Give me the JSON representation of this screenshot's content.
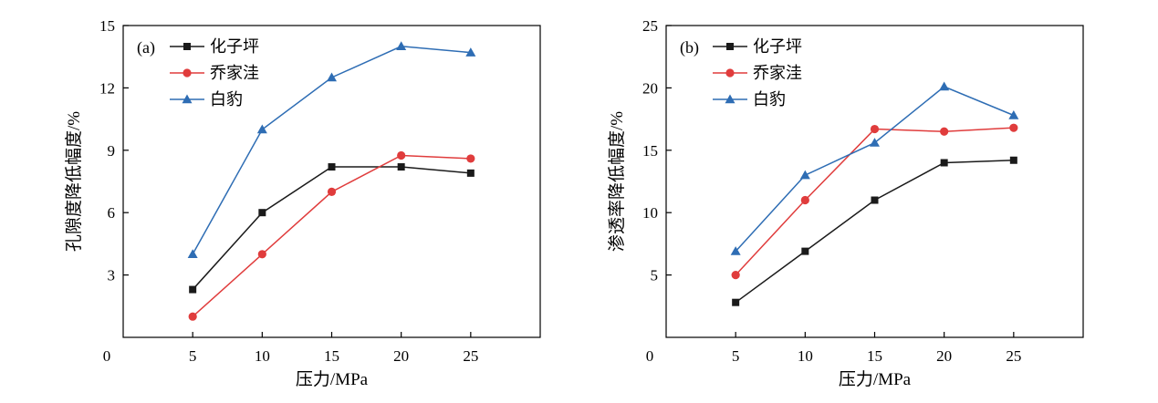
{
  "colors": {
    "s1": "#1a1a1a",
    "s2": "#e03c3c",
    "s3": "#2e6db4"
  },
  "chart_data": [
    {
      "type": "line",
      "panel_label": "(a)",
      "xlabel": "压力/MPa",
      "ylabel": "孔隙度降低幅度/%",
      "x": [
        5,
        10,
        15,
        20,
        25
      ],
      "xlim": [
        0,
        30
      ],
      "xticks": [
        "0",
        "5",
        "10",
        "15",
        "20",
        "25"
      ],
      "ylim": [
        0,
        15
      ],
      "yticks": [
        "3",
        "6",
        "9",
        "12",
        "15"
      ],
      "legend_position": "top-left",
      "series": [
        {
          "name": "化子坪",
          "marker": "square",
          "values": [
            2.3,
            6.0,
            8.2,
            8.2,
            7.9
          ]
        },
        {
          "name": "乔家洼",
          "marker": "circle",
          "values": [
            1.0,
            4.0,
            7.0,
            8.75,
            8.6
          ]
        },
        {
          "name": "白豹",
          "marker": "triangle",
          "values": [
            4.0,
            10.0,
            12.5,
            14.0,
            13.7
          ]
        }
      ]
    },
    {
      "type": "line",
      "panel_label": "(b)",
      "xlabel": "压力/MPa",
      "ylabel": "渗透率降低幅度/%",
      "x": [
        5,
        10,
        15,
        20,
        25
      ],
      "xlim": [
        0,
        30
      ],
      "xticks": [
        "0",
        "5",
        "10",
        "15",
        "20",
        "25"
      ],
      "ylim": [
        0,
        25
      ],
      "yticks": [
        "5",
        "10",
        "15",
        "20",
        "25"
      ],
      "legend_position": "top-left",
      "series": [
        {
          "name": "化子坪",
          "marker": "square",
          "values": [
            2.8,
            6.9,
            11.0,
            14.0,
            14.2
          ]
        },
        {
          "name": "乔家洼",
          "marker": "circle",
          "values": [
            5.0,
            11.0,
            16.7,
            16.5,
            16.8
          ]
        },
        {
          "name": "白豹",
          "marker": "triangle",
          "values": [
            6.9,
            13.0,
            15.6,
            20.1,
            17.8
          ]
        }
      ]
    }
  ]
}
